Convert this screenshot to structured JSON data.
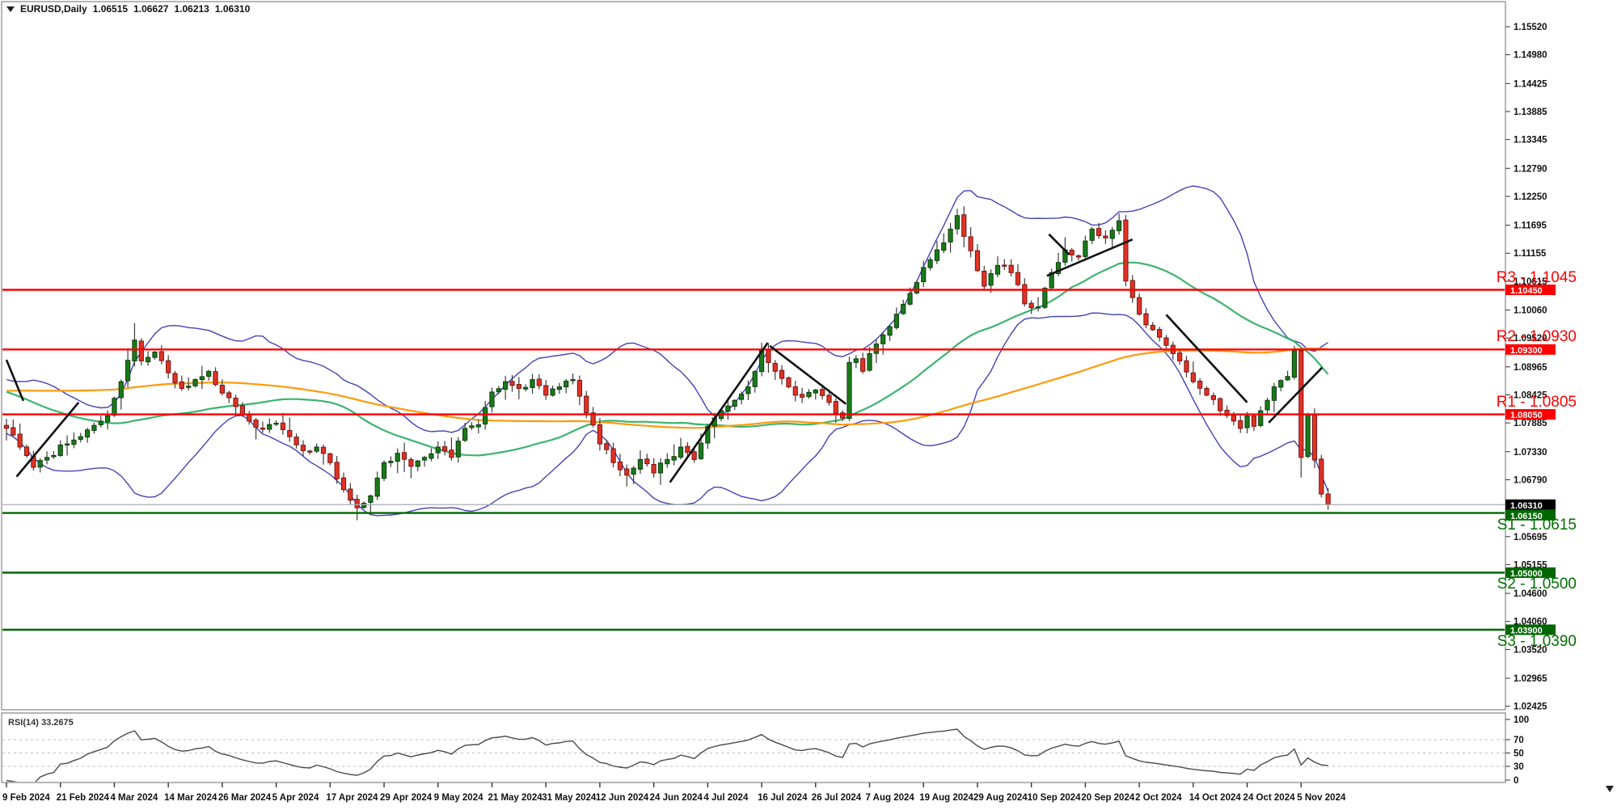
{
  "window": {
    "symbol_timeframe": "EURUSD,Daily",
    "open": "1.06515",
    "high": "1.06627",
    "low": "1.06213",
    "close": "1.06310"
  },
  "levels": {
    "resistance": [
      {
        "label": "R3 - 1.1045",
        "price": 1.1045,
        "badge": "1.10450"
      },
      {
        "label": "R2 - 1.0930",
        "price": 1.093,
        "badge": "1.09300"
      },
      {
        "label": "R1 - 1.0805",
        "price": 1.0805,
        "badge": "1.08050"
      }
    ],
    "support": [
      {
        "label": "S1 - 1.0615",
        "price": 1.0615,
        "badge": "1.06150"
      },
      {
        "label": "S2 - 1.0500",
        "price": 1.05,
        "badge": "1.05000"
      },
      {
        "label": "S3 - 1.0390",
        "price": 1.039,
        "badge": "1.03900"
      }
    ],
    "resistance_color": "#ff0000",
    "support_color": "#006600"
  },
  "price_axis": {
    "ticks": [
      "1.15520",
      "1.14980",
      "1.14425",
      "1.13885",
      "1.13345",
      "1.12790",
      "1.12250",
      "1.11695",
      "1.11155",
      "1.10615",
      "1.10060",
      "1.09520",
      "1.08965",
      "1.08425",
      "1.07885",
      "1.07330",
      "1.06790",
      "1.05695",
      "1.05155",
      "1.04600",
      "1.04060",
      "1.03520",
      "1.02965",
      "1.02425"
    ],
    "current_badge": {
      "text": "1.06310",
      "bg": "#000000",
      "fg": "#ffffff"
    }
  },
  "time_axis": {
    "labels": [
      "9 Feb 2024",
      "21 Feb 2024",
      "4 Mar 2024",
      "14 Mar 2024",
      "26 Mar 2024",
      "5 Apr 2024",
      "17 Apr 2024",
      "29 Apr 2024",
      "9 May 2024",
      "21 May 2024",
      "31 May 2024",
      "12 Jun 2024",
      "24 Jun 2024",
      "4 Jul 2024",
      "16 Jul 2024",
      "26 Jul 2024",
      "7 Aug 2024",
      "19 Aug 2024",
      "29 Aug 2024",
      "10 Sep 2024",
      "20 Sep 2024",
      "2 Oct 2024",
      "14 Oct 2024",
      "24 Oct 2024",
      "5 Nov 2024"
    ],
    "bars_per_label": 8
  },
  "rsi_panel": {
    "label": "RSI(14) 33.2675",
    "value": 33.2675,
    "period": 14,
    "scale_labels": [
      "100",
      "70",
      "50",
      "30",
      "0"
    ],
    "dashed_levels": [
      70,
      50,
      30
    ]
  },
  "chart_data": {
    "type": "candlestick",
    "symbol": "EURUSD",
    "timeframe": "Daily",
    "visible_bars": 197,
    "y_axis_range": [
      1.02425,
      1.1552
    ],
    "grid": "off",
    "last_bar_ohlc": {
      "open": 1.06515,
      "high": 1.06627,
      "low": 1.06213,
      "close": 1.0631
    },
    "price_anchors": [
      [
        0,
        1.0778
      ],
      [
        2,
        1.0742
      ],
      [
        4,
        1.0703
      ],
      [
        6,
        1.0722
      ],
      [
        9,
        1.0748
      ],
      [
        12,
        1.0775
      ],
      [
        15,
        1.0802
      ],
      [
        17,
        1.0868
      ],
      [
        19,
        1.0948
      ],
      [
        20,
        1.0908
      ],
      [
        22,
        1.0925
      ],
      [
        24,
        1.0885
      ],
      [
        26,
        1.0855
      ],
      [
        28,
        1.0872
      ],
      [
        30,
        1.0888
      ],
      [
        32,
        1.0846
      ],
      [
        34,
        1.082
      ],
      [
        36,
        1.0792
      ],
      [
        38,
        1.0778
      ],
      [
        40,
        1.0788
      ],
      [
        42,
        1.0762
      ],
      [
        44,
        1.0735
      ],
      [
        46,
        1.0742
      ],
      [
        48,
        1.0712
      ],
      [
        50,
        1.066
      ],
      [
        52,
        1.0625
      ],
      [
        54,
        1.0648
      ],
      [
        56,
        1.0712
      ],
      [
        58,
        1.073
      ],
      [
        60,
        1.0705
      ],
      [
        62,
        1.0722
      ],
      [
        64,
        1.0742
      ],
      [
        66,
        1.0722
      ],
      [
        68,
        1.0778
      ],
      [
        70,
        1.0785
      ],
      [
        72,
        1.0848
      ],
      [
        74,
        1.0868
      ],
      [
        76,
        1.0855
      ],
      [
        78,
        1.0872
      ],
      [
        80,
        1.0842
      ],
      [
        82,
        1.0858
      ],
      [
        84,
        1.0872
      ],
      [
        86,
        1.0808
      ],
      [
        88,
        1.0748
      ],
      [
        90,
        1.0712
      ],
      [
        92,
        1.0688
      ],
      [
        94,
        1.0718
      ],
      [
        96,
        1.0692
      ],
      [
        98,
        1.0718
      ],
      [
        100,
        1.0742
      ],
      [
        102,
        1.0718
      ],
      [
        104,
        1.0782
      ],
      [
        106,
        1.0812
      ],
      [
        108,
        1.0832
      ],
      [
        110,
        1.0858
      ],
      [
        112,
        1.0928
      ],
      [
        114,
        1.0888
      ],
      [
        116,
        1.0858
      ],
      [
        118,
        1.0838
      ],
      [
        120,
        1.0852
      ],
      [
        122,
        1.0828
      ],
      [
        124,
        1.0798
      ],
      [
        125,
        1.0905
      ],
      [
        126,
        1.0912
      ],
      [
        127,
        1.0888
      ],
      [
        128,
        1.0922
      ],
      [
        130,
        1.0958
      ],
      [
        132,
        1.0998
      ],
      [
        134,
        1.1038
      ],
      [
        136,
        1.1088
      ],
      [
        138,
        1.1122
      ],
      [
        140,
        1.1162
      ],
      [
        141,
        1.1188
      ],
      [
        142,
        1.1148
      ],
      [
        144,
        1.1082
      ],
      [
        145,
        1.1052
      ],
      [
        147,
        1.1092
      ],
      [
        149,
        1.1078
      ],
      [
        151,
        1.1018
      ],
      [
        153,
        1.1012
      ],
      [
        155,
        1.1078
      ],
      [
        157,
        1.1122
      ],
      [
        159,
        1.1108
      ],
      [
        161,
        1.1162
      ],
      [
        163,
        1.1145
      ],
      [
        165,
        1.1178
      ],
      [
        166,
        1.1062
      ],
      [
        168,
        1.0998
      ],
      [
        170,
        1.0968
      ],
      [
        172,
        1.0938
      ],
      [
        174,
        1.0908
      ],
      [
        176,
        1.0868
      ],
      [
        178,
        1.0842
      ],
      [
        180,
        1.0812
      ],
      [
        182,
        1.0792
      ],
      [
        183,
        1.0778
      ],
      [
        184,
        1.0802
      ],
      [
        185,
        1.0782
      ],
      [
        186,
        1.0812
      ],
      [
        187,
        1.0832
      ],
      [
        188,
        1.0858
      ],
      [
        190,
        1.0878
      ],
      [
        191,
        1.0928
      ],
      [
        192,
        1.0722
      ],
      [
        193,
        1.0805
      ],
      [
        194,
        1.0717
      ],
      [
        195,
        1.06515
      ],
      [
        196,
        1.0631
      ]
    ],
    "prehistory_anchors": [
      [
        -100,
        1.0715
      ],
      [
        -80,
        1.0772
      ],
      [
        -60,
        1.0905
      ],
      [
        -45,
        1.0968
      ],
      [
        -30,
        1.0902
      ],
      [
        -15,
        1.0845
      ],
      [
        -5,
        1.0798
      ]
    ],
    "wick_overrides": {
      "19": {
        "high": 1.0981
      },
      "52": {
        "low": 1.0601
      },
      "92": {
        "low": 1.0666
      },
      "112": {
        "high": 1.0943
      },
      "141": {
        "high": 1.1201
      },
      "165": {
        "high": 1.1192
      },
      "191": {
        "high": 1.0937
      },
      "192": {
        "low": 1.0683
      },
      "196": {
        "open": 1.06515,
        "high": 1.06627,
        "low": 1.06213,
        "close": 1.0631
      }
    },
    "indicators": {
      "bollinger": {
        "period": 20,
        "deviation": 2.0,
        "color": "#4343b6"
      },
      "ma_fast": {
        "period": 34,
        "color": "#3cb46e"
      },
      "ma_slow": {
        "period": 100,
        "color": "#ff9a0c"
      },
      "rsi": {
        "period": 14,
        "color": "#4a4a4a"
      }
    },
    "candle_colors": {
      "bull_fill": "#1a7a1a",
      "bull_stroke": "#0d3d0d",
      "bear_fill": "#e03226",
      "bear_stroke": "#7a1410",
      "wick": "#3c3c3c"
    },
    "current_price_line": {
      "price": 1.0631,
      "color": "#a8aeb6"
    },
    "trendlines": [
      {
        "from": [
          0,
          1.091
        ],
        "to": [
          2.5,
          1.0831
        ]
      },
      {
        "from": [
          1.5,
          1.0685
        ],
        "to": [
          10.7,
          1.0828
        ]
      },
      {
        "from": [
          98.4,
          1.0674
        ],
        "to": [
          112.9,
          1.0943
        ]
      },
      {
        "from": [
          113.2,
          1.0937
        ],
        "to": [
          124.5,
          1.0825
        ]
      },
      {
        "from": [
          154.6,
          1.1152
        ],
        "to": [
          157.6,
          1.1113
        ]
      },
      {
        "from": [
          154.3,
          1.1072
        ],
        "to": [
          167.0,
          1.1142
        ]
      },
      {
        "from": [
          172.0,
          1.0997
        ],
        "to": [
          184.0,
          1.0828
        ]
      },
      {
        "from": [
          187.2,
          1.0789
        ],
        "to": [
          195.1,
          1.0895
        ]
      },
      {
        "color": "#111111"
      }
    ]
  }
}
